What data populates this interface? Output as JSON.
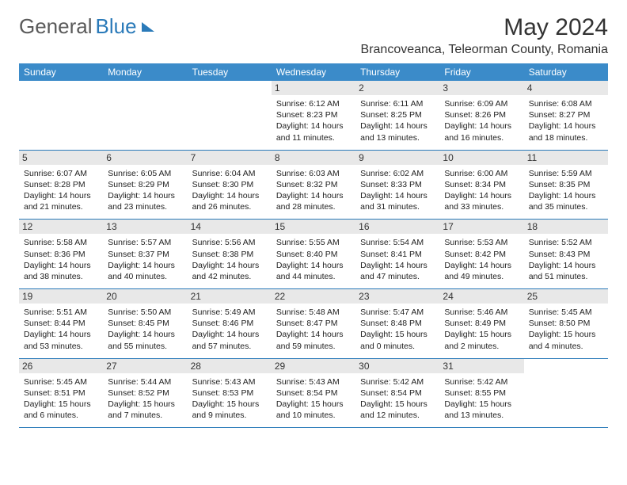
{
  "logo": {
    "part1": "General",
    "part2": "Blue"
  },
  "title": "May 2024",
  "location": "Brancoveanca, Teleorman County, Romania",
  "colors": {
    "header_bg": "#3b8bc9",
    "header_text": "#ffffff",
    "daynum_bg": "#e8e8e8",
    "rule": "#2a7ab9",
    "text": "#222222",
    "logo_gray": "#5a5a5a",
    "logo_blue": "#2a7ab9"
  },
  "weekdays": [
    "Sunday",
    "Monday",
    "Tuesday",
    "Wednesday",
    "Thursday",
    "Friday",
    "Saturday"
  ],
  "weeks": [
    [
      null,
      null,
      null,
      {
        "n": "1",
        "sr": "Sunrise: 6:12 AM",
        "ss": "Sunset: 8:23 PM",
        "d1": "Daylight: 14 hours",
        "d2": "and 11 minutes."
      },
      {
        "n": "2",
        "sr": "Sunrise: 6:11 AM",
        "ss": "Sunset: 8:25 PM",
        "d1": "Daylight: 14 hours",
        "d2": "and 13 minutes."
      },
      {
        "n": "3",
        "sr": "Sunrise: 6:09 AM",
        "ss": "Sunset: 8:26 PM",
        "d1": "Daylight: 14 hours",
        "d2": "and 16 minutes."
      },
      {
        "n": "4",
        "sr": "Sunrise: 6:08 AM",
        "ss": "Sunset: 8:27 PM",
        "d1": "Daylight: 14 hours",
        "d2": "and 18 minutes."
      }
    ],
    [
      {
        "n": "5",
        "sr": "Sunrise: 6:07 AM",
        "ss": "Sunset: 8:28 PM",
        "d1": "Daylight: 14 hours",
        "d2": "and 21 minutes."
      },
      {
        "n": "6",
        "sr": "Sunrise: 6:05 AM",
        "ss": "Sunset: 8:29 PM",
        "d1": "Daylight: 14 hours",
        "d2": "and 23 minutes."
      },
      {
        "n": "7",
        "sr": "Sunrise: 6:04 AM",
        "ss": "Sunset: 8:30 PM",
        "d1": "Daylight: 14 hours",
        "d2": "and 26 minutes."
      },
      {
        "n": "8",
        "sr": "Sunrise: 6:03 AM",
        "ss": "Sunset: 8:32 PM",
        "d1": "Daylight: 14 hours",
        "d2": "and 28 minutes."
      },
      {
        "n": "9",
        "sr": "Sunrise: 6:02 AM",
        "ss": "Sunset: 8:33 PM",
        "d1": "Daylight: 14 hours",
        "d2": "and 31 minutes."
      },
      {
        "n": "10",
        "sr": "Sunrise: 6:00 AM",
        "ss": "Sunset: 8:34 PM",
        "d1": "Daylight: 14 hours",
        "d2": "and 33 minutes."
      },
      {
        "n": "11",
        "sr": "Sunrise: 5:59 AM",
        "ss": "Sunset: 8:35 PM",
        "d1": "Daylight: 14 hours",
        "d2": "and 35 minutes."
      }
    ],
    [
      {
        "n": "12",
        "sr": "Sunrise: 5:58 AM",
        "ss": "Sunset: 8:36 PM",
        "d1": "Daylight: 14 hours",
        "d2": "and 38 minutes."
      },
      {
        "n": "13",
        "sr": "Sunrise: 5:57 AM",
        "ss": "Sunset: 8:37 PM",
        "d1": "Daylight: 14 hours",
        "d2": "and 40 minutes."
      },
      {
        "n": "14",
        "sr": "Sunrise: 5:56 AM",
        "ss": "Sunset: 8:38 PM",
        "d1": "Daylight: 14 hours",
        "d2": "and 42 minutes."
      },
      {
        "n": "15",
        "sr": "Sunrise: 5:55 AM",
        "ss": "Sunset: 8:40 PM",
        "d1": "Daylight: 14 hours",
        "d2": "and 44 minutes."
      },
      {
        "n": "16",
        "sr": "Sunrise: 5:54 AM",
        "ss": "Sunset: 8:41 PM",
        "d1": "Daylight: 14 hours",
        "d2": "and 47 minutes."
      },
      {
        "n": "17",
        "sr": "Sunrise: 5:53 AM",
        "ss": "Sunset: 8:42 PM",
        "d1": "Daylight: 14 hours",
        "d2": "and 49 minutes."
      },
      {
        "n": "18",
        "sr": "Sunrise: 5:52 AM",
        "ss": "Sunset: 8:43 PM",
        "d1": "Daylight: 14 hours",
        "d2": "and 51 minutes."
      }
    ],
    [
      {
        "n": "19",
        "sr": "Sunrise: 5:51 AM",
        "ss": "Sunset: 8:44 PM",
        "d1": "Daylight: 14 hours",
        "d2": "and 53 minutes."
      },
      {
        "n": "20",
        "sr": "Sunrise: 5:50 AM",
        "ss": "Sunset: 8:45 PM",
        "d1": "Daylight: 14 hours",
        "d2": "and 55 minutes."
      },
      {
        "n": "21",
        "sr": "Sunrise: 5:49 AM",
        "ss": "Sunset: 8:46 PM",
        "d1": "Daylight: 14 hours",
        "d2": "and 57 minutes."
      },
      {
        "n": "22",
        "sr": "Sunrise: 5:48 AM",
        "ss": "Sunset: 8:47 PM",
        "d1": "Daylight: 14 hours",
        "d2": "and 59 minutes."
      },
      {
        "n": "23",
        "sr": "Sunrise: 5:47 AM",
        "ss": "Sunset: 8:48 PM",
        "d1": "Daylight: 15 hours",
        "d2": "and 0 minutes."
      },
      {
        "n": "24",
        "sr": "Sunrise: 5:46 AM",
        "ss": "Sunset: 8:49 PM",
        "d1": "Daylight: 15 hours",
        "d2": "and 2 minutes."
      },
      {
        "n": "25",
        "sr": "Sunrise: 5:45 AM",
        "ss": "Sunset: 8:50 PM",
        "d1": "Daylight: 15 hours",
        "d2": "and 4 minutes."
      }
    ],
    [
      {
        "n": "26",
        "sr": "Sunrise: 5:45 AM",
        "ss": "Sunset: 8:51 PM",
        "d1": "Daylight: 15 hours",
        "d2": "and 6 minutes."
      },
      {
        "n": "27",
        "sr": "Sunrise: 5:44 AM",
        "ss": "Sunset: 8:52 PM",
        "d1": "Daylight: 15 hours",
        "d2": "and 7 minutes."
      },
      {
        "n": "28",
        "sr": "Sunrise: 5:43 AM",
        "ss": "Sunset: 8:53 PM",
        "d1": "Daylight: 15 hours",
        "d2": "and 9 minutes."
      },
      {
        "n": "29",
        "sr": "Sunrise: 5:43 AM",
        "ss": "Sunset: 8:54 PM",
        "d1": "Daylight: 15 hours",
        "d2": "and 10 minutes."
      },
      {
        "n": "30",
        "sr": "Sunrise: 5:42 AM",
        "ss": "Sunset: 8:54 PM",
        "d1": "Daylight: 15 hours",
        "d2": "and 12 minutes."
      },
      {
        "n": "31",
        "sr": "Sunrise: 5:42 AM",
        "ss": "Sunset: 8:55 PM",
        "d1": "Daylight: 15 hours",
        "d2": "and 13 minutes."
      },
      null
    ]
  ]
}
